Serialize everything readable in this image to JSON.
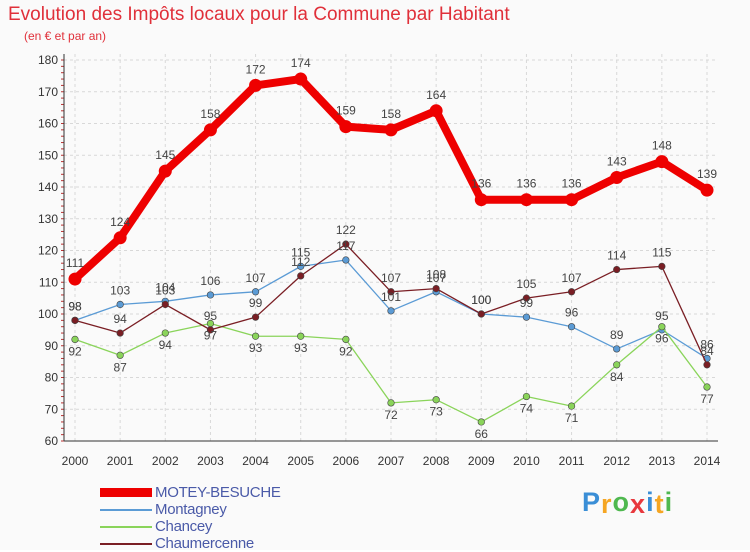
{
  "chart_data": {
    "type": "line",
    "title": "Evolution des Impôts locaux pour la Commune par Habitant",
    "subtitle": "(en € et par an)",
    "x": [
      "2000",
      "2001",
      "2002",
      "2003",
      "2004",
      "2005",
      "2006",
      "2007",
      "2008",
      "2009",
      "2010",
      "2011",
      "2012",
      "2013",
      "2014"
    ],
    "ylim": [
      60,
      180
    ],
    "yticks": [
      60,
      70,
      80,
      90,
      100,
      110,
      120,
      130,
      140,
      150,
      160,
      170,
      180
    ],
    "grid": true,
    "legend": "bottom-left",
    "series": [
      {
        "name": "MOTEY-BESUCHE",
        "color": "#ee0000",
        "values": [
          111,
          124,
          145,
          158,
          172,
          174,
          159,
          158,
          164,
          136,
          136,
          136,
          143,
          148,
          139
        ]
      },
      {
        "name": "Montagney",
        "color": "#5b9bd5",
        "values": [
          98,
          103,
          104,
          106,
          107,
          115,
          117,
          101,
          107,
          100,
          99,
          96,
          89,
          95,
          86
        ]
      },
      {
        "name": "Chancey",
        "color": "#8ad45a",
        "values": [
          92,
          87,
          94,
          97,
          93,
          93,
          92,
          72,
          73,
          66,
          74,
          71,
          84,
          96,
          77
        ]
      },
      {
        "name": "Chaumercenne",
        "color": "#7a1e24",
        "values": [
          98,
          94,
          103,
          95,
          99,
          112,
          122,
          107,
          108,
          100,
          105,
          107,
          114,
          115,
          84
        ]
      }
    ]
  },
  "logo": {
    "letters": [
      "P",
      "r",
      "o",
      "x",
      "i",
      "t",
      "i"
    ],
    "colors": [
      "#3a8ed6",
      "#f5a623",
      "#4fb84f",
      "#e8383d",
      "#3a8ed6",
      "#f5a623",
      "#4fb84f"
    ]
  }
}
